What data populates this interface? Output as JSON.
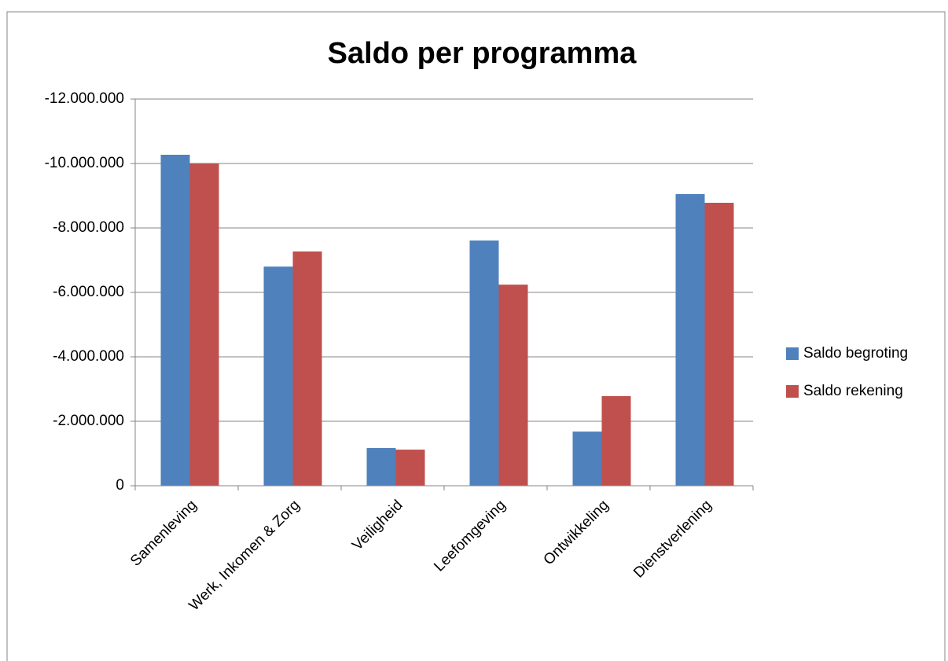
{
  "chart_data": {
    "type": "bar",
    "title": "Saldo per programma",
    "categories": [
      "Samenleving",
      "Werk, Inkomen & Zorg",
      "Veiligheid",
      "Leefomgeving",
      "Ontwikkeling",
      "Dienstverlening"
    ],
    "series": [
      {
        "name": "Saldo begroting",
        "color": "#4f81bd",
        "values": [
          -10270000,
          -6800000,
          -1170000,
          -7610000,
          -1680000,
          -9050000
        ]
      },
      {
        "name": "Saldo rekening",
        "color": "#c0504d",
        "values": [
          -10000000,
          -7270000,
          -1120000,
          -6240000,
          -2780000,
          -8780000
        ]
      }
    ],
    "ylim": [
      0,
      -12000000
    ],
    "yticks": [
      0,
      {
        "value": -2000000,
        "label": "-2.000.000"
      },
      {
        "value": -4000000,
        "label": "-4.000.000"
      },
      {
        "value": -6000000,
        "label": "-6.000.000"
      },
      {
        "value": -8000000,
        "label": "-8.000.000"
      },
      {
        "value": -10000000,
        "label": "-10.000.000"
      },
      {
        "value": -12000000,
        "label": "-12.000.000"
      }
    ],
    "grid": true,
    "legend": "right"
  }
}
